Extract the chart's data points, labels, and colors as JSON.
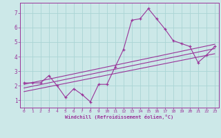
{
  "xlabel": "Windchill (Refroidissement éolien,°C)",
  "bg_color": "#cce8e8",
  "grid_color": "#aad4d4",
  "line_color": "#993399",
  "xlim": [
    -0.5,
    23.5
  ],
  "ylim": [
    0.5,
    7.7
  ],
  "xticks": [
    0,
    1,
    2,
    3,
    4,
    5,
    6,
    7,
    8,
    9,
    10,
    11,
    12,
    13,
    14,
    15,
    16,
    17,
    18,
    19,
    20,
    21,
    22,
    23
  ],
  "yticks": [
    1,
    2,
    3,
    4,
    5,
    6,
    7
  ],
  "data_x": [
    0,
    1,
    2,
    3,
    4,
    5,
    6,
    7,
    8,
    9,
    10,
    11,
    12,
    13,
    14,
    15,
    16,
    17,
    18,
    19,
    20,
    21,
    22,
    23
  ],
  "data_y": [
    2.2,
    2.2,
    2.2,
    2.7,
    2.0,
    1.2,
    1.8,
    1.4,
    0.9,
    2.1,
    2.1,
    3.3,
    4.5,
    6.5,
    6.6,
    7.3,
    6.6,
    5.9,
    5.1,
    4.9,
    4.7,
    3.6,
    4.1,
    4.7
  ],
  "trend1_x": [
    0,
    23
  ],
  "trend1_y": [
    1.6,
    4.2
  ],
  "trend2_x": [
    0,
    23
  ],
  "trend2_y": [
    1.85,
    4.55
  ],
  "trend3_x": [
    0,
    23
  ],
  "trend3_y": [
    2.1,
    4.85
  ]
}
